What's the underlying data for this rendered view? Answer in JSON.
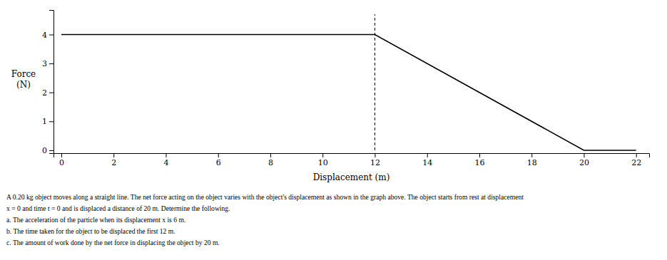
{
  "chart_data": {
    "type": "line",
    "xlabel": "Displacement (m)",
    "ylabel": "Force\n(N)",
    "x": [
      0,
      12,
      20,
      22
    ],
    "values": [
      4,
      4,
      0,
      0
    ],
    "color": "#000000",
    "xlim": [
      -0.3,
      22.5
    ],
    "ylim": [
      -0.1,
      4.85
    ],
    "xticks": [
      0,
      2,
      4,
      6,
      8,
      10,
      12,
      14,
      16,
      18,
      20,
      22
    ],
    "yticks": [
      0,
      1,
      2,
      3,
      4
    ],
    "reference_line": {
      "x": 12,
      "y_bottom": 0,
      "y_top": 4.7,
      "line_style": "dashed",
      "color": "#000000"
    },
    "annotations": [
      "A 0.20 kg object moves along a straight line. The net force acting on the object varies with the object's displacement as shown in the graph above. The object starts from rest at displacement",
      "x = 0 and time t = 0 and is displaced a distance of 20 m. Determine the following.",
      "a. The acceleration of the particle when its displacement x is 6 m.",
      "b. The time taken for the object to be displaced the first 12 m.",
      "c. The amount of work done by the net force in displacing the object by 20 m."
    ]
  }
}
